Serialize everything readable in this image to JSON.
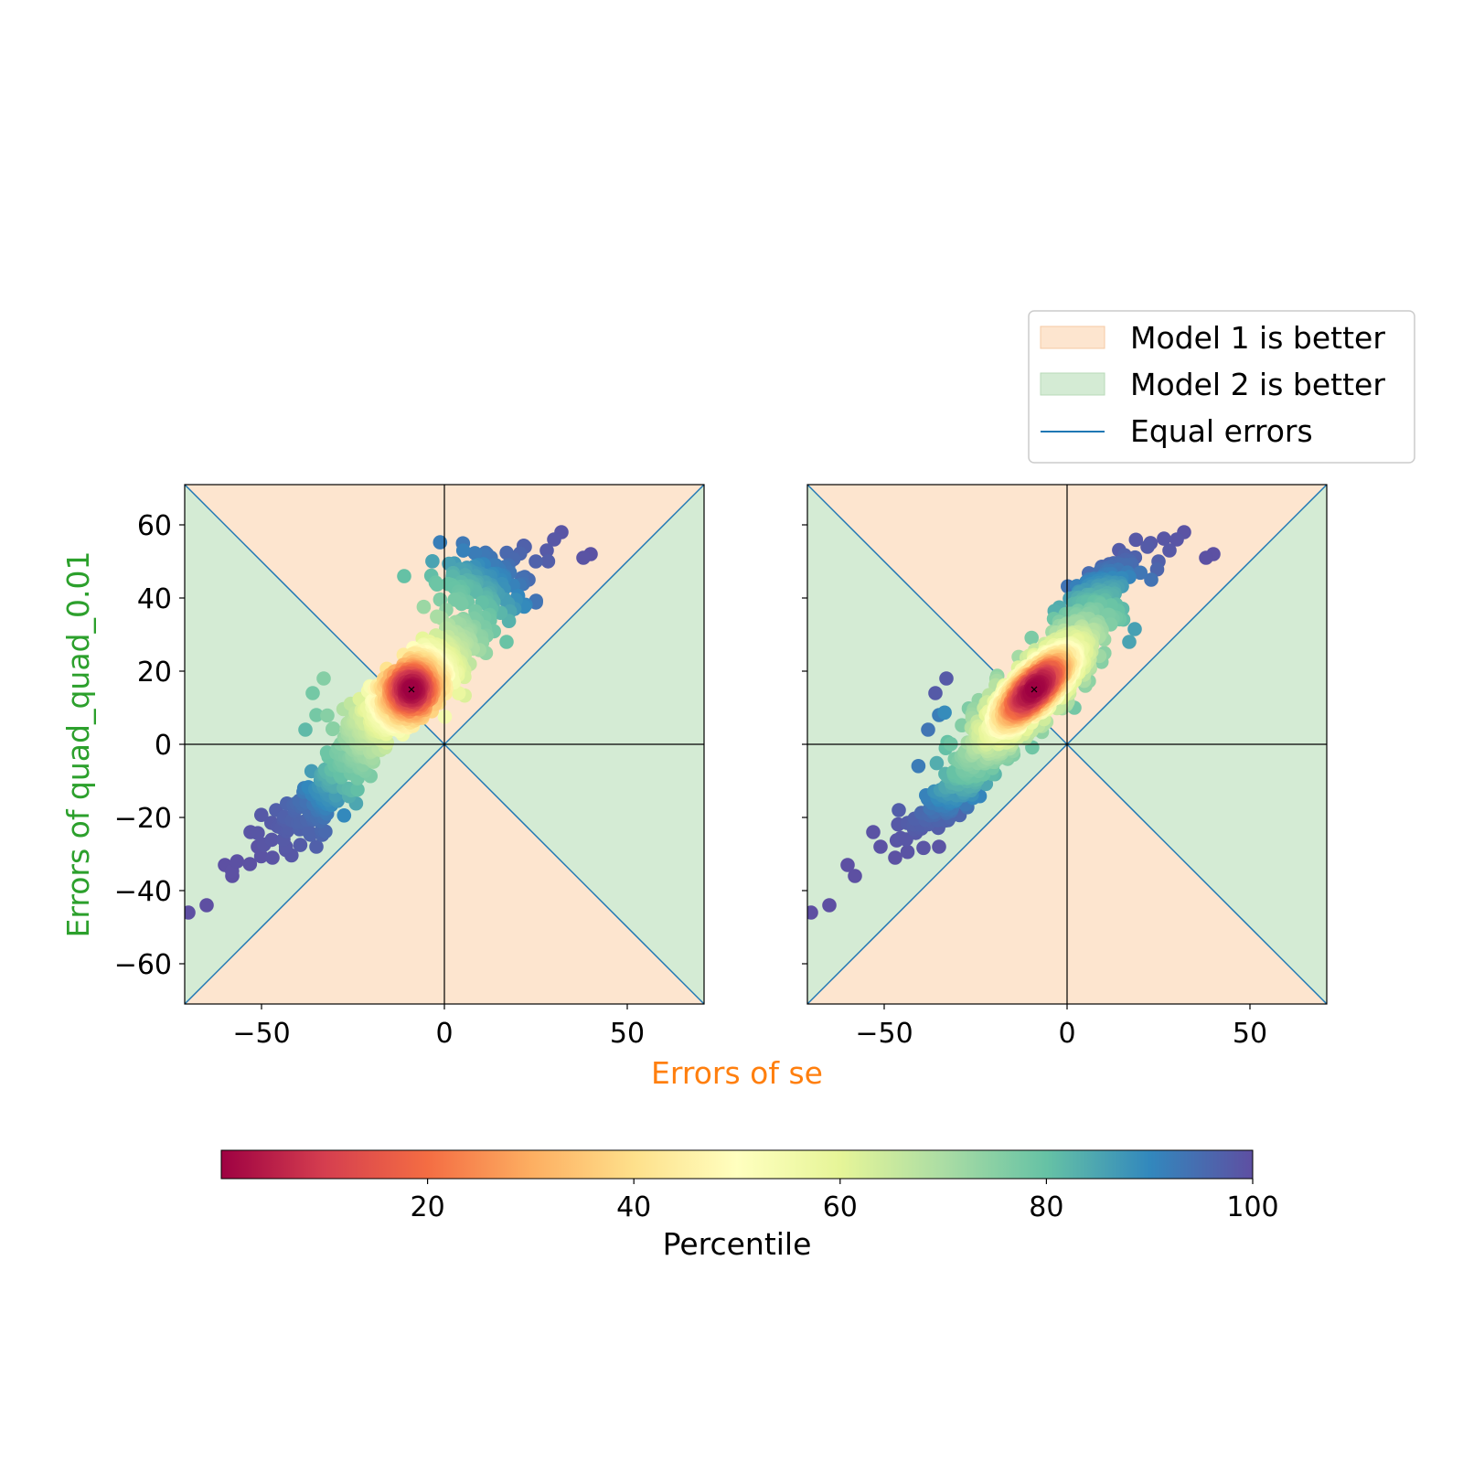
{
  "chart_data": {
    "type": "scatter",
    "xlabel": "Errors of se",
    "ylabel": "Errors of quad_quad_0.01",
    "xlim": [
      -71,
      71
    ],
    "ylim": [
      -71,
      71
    ],
    "x_ticks": [
      -50,
      0,
      50
    ],
    "y_ticks": [
      -60,
      -40,
      -20,
      0,
      20,
      40,
      60
    ],
    "x_tick_labels": [
      "−50",
      "0",
      "50"
    ],
    "y_tick_labels": [
      "−60",
      "−40",
      "−20",
      "0",
      "20",
      "40",
      "60"
    ],
    "grid": false,
    "legend_placement": "top-right, above plots",
    "legend": [
      {
        "label": "Model 1 is better",
        "kind": "patch",
        "color": "#fde5cf"
      },
      {
        "label": "Model 2 is better",
        "kind": "patch",
        "color": "#d4ebd4"
      },
      {
        "label": "Equal errors",
        "kind": "line",
        "color": "#1f77b4"
      }
    ],
    "colorbar": {
      "label": "Percentile",
      "range": [
        0,
        100
      ],
      "ticks": [
        20,
        40,
        60,
        80,
        100
      ],
      "tick_labels": [
        "20",
        "40",
        "60",
        "80",
        "100"
      ],
      "colormap": "Spectral"
    },
    "colors": {
      "model1_region": "#fde5cf",
      "model2_region": "#d4ebd4",
      "equal_line": "#1f77b4",
      "xlabel_color": "#ff7f0e",
      "ylabel_color": "#2ca02c"
    },
    "panels": [
      {
        "name": "left",
        "center": [
          -9,
          15
        ],
        "clusters": [
          {
            "cx": -9,
            "cy": 15,
            "count": 900
          },
          {
            "cx": 10,
            "cy": 44,
            "count": 130
          },
          {
            "cx": -33,
            "cy": -14,
            "count": 140
          }
        ],
        "outliers": [
          [
            -70,
            -46
          ],
          [
            -65,
            -44
          ],
          [
            -58,
            -36
          ],
          [
            -60,
            -33
          ],
          [
            -47,
            -31
          ],
          [
            -51,
            -28
          ],
          [
            -53,
            -24
          ],
          [
            -44,
            -26
          ],
          [
            -35,
            -28
          ],
          [
            -46,
            -18
          ],
          [
            38,
            51
          ],
          [
            40,
            52
          ],
          [
            32,
            58
          ],
          [
            30,
            56
          ],
          [
            23,
            45
          ],
          [
            17,
            28
          ],
          [
            12,
            38
          ],
          [
            -35,
            8
          ],
          [
            -36,
            14
          ],
          [
            -33,
            18
          ],
          [
            -38,
            4
          ],
          [
            25,
            50
          ],
          [
            22,
            54
          ],
          [
            28,
            53
          ]
        ]
      },
      {
        "name": "right",
        "center": [
          -9,
          15
        ],
        "clusters": [
          {
            "cx": -9,
            "cy": 15,
            "count": 900
          },
          {
            "cx": 8,
            "cy": 42,
            "count": 130
          },
          {
            "cx": -30,
            "cy": -12,
            "count": 140
          }
        ],
        "outliers": [
          [
            -70,
            -46
          ],
          [
            -65,
            -44
          ],
          [
            -58,
            -36
          ],
          [
            -60,
            -33
          ],
          [
            -47,
            -31
          ],
          [
            -51,
            -28
          ],
          [
            -53,
            -24
          ],
          [
            -44,
            -26
          ],
          [
            -35,
            -28
          ],
          [
            -46,
            -18
          ],
          [
            38,
            51
          ],
          [
            40,
            52
          ],
          [
            32,
            58
          ],
          [
            30,
            56
          ],
          [
            23,
            45
          ],
          [
            17,
            28
          ],
          [
            12,
            38
          ],
          [
            -35,
            8
          ],
          [
            -36,
            14
          ],
          [
            -33,
            18
          ],
          [
            -38,
            4
          ],
          [
            25,
            50
          ],
          [
            22,
            54
          ],
          [
            28,
            53
          ],
          [
            5,
            16
          ],
          [
            2,
            10
          ]
        ]
      }
    ]
  }
}
